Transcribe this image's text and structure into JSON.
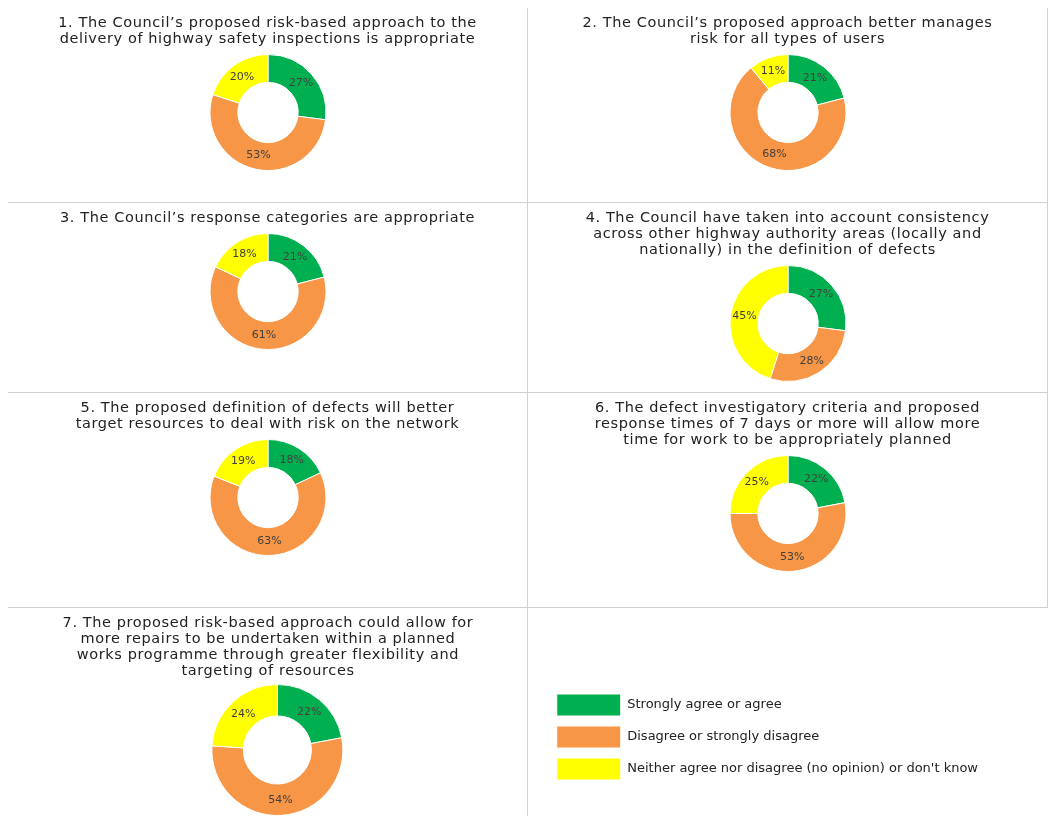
{
  "chart_data": [
    {
      "type": "donut",
      "title": "1. The Council’s proposed risk-based approach to the delivery of highway safety inspections is appropriate",
      "categories": [
        null,
        null,
        null
      ],
      "values": [
        27,
        53,
        20
      ],
      "colors": [
        "#00b050",
        "#f79646",
        "#ffff00"
      ],
      "value_labels": [
        "27%",
        "53%",
        "20%"
      ],
      "legend": false
    },
    {
      "type": "donut",
      "title": "2. The Council’s proposed approach better manages risk for all types of users",
      "categories": [
        null,
        null,
        null
      ],
      "values": [
        21,
        68,
        11
      ],
      "colors": [
        "#00b050",
        "#f79646",
        "#ffff00"
      ],
      "value_labels": [
        "21%",
        "68%",
        "11%"
      ],
      "legend": false
    },
    {
      "type": "donut",
      "title": "3. The Council’s response categories are appropriate",
      "categories": [
        null,
        null,
        null
      ],
      "values": [
        21,
        61,
        18
      ],
      "colors": [
        "#00b050",
        "#f79646",
        "#ffff00"
      ],
      "value_labels": [
        "21%",
        "61%",
        "18%"
      ],
      "legend": false
    },
    {
      "type": "donut",
      "title": "4. The Council have taken into account consistency across other highway authority areas (locally and nationally) in the definition of defects",
      "categories": [
        null,
        null,
        null
      ],
      "values": [
        27,
        28,
        45
      ],
      "colors": [
        "#00b050",
        "#f79646",
        "#ffff00"
      ],
      "value_labels": [
        "27%",
        "28%",
        "45%"
      ],
      "legend": false
    },
    {
      "type": "donut",
      "title": "5. The proposed definition of defects will better target resources to deal with risk on the network",
      "categories": [
        null,
        null,
        null
      ],
      "values": [
        18,
        63,
        19
      ],
      "colors": [
        "#00b050",
        "#f79646",
        "#ffff00"
      ],
      "value_labels": [
        "18%",
        "63%",
        "19%"
      ],
      "legend": false
    },
    {
      "type": "donut",
      "title": "6. The defect investigatory criteria and proposed response times of 7 days or more will allow more time for work to be appropriately planned",
      "categories": [
        null,
        null,
        null
      ],
      "values": [
        22,
        53,
        25
      ],
      "colors": [
        "#00b050",
        "#f79646",
        "#ffff00"
      ],
      "value_labels": [
        "22%",
        "53%",
        "25%"
      ],
      "legend": false
    },
    {
      "type": "donut",
      "title": "7. The proposed risk-based approach could allow for more repairs to be undertaken within a planned works programme through greater flexibility and targeting of resources",
      "categories": [
        "Strongly agree or agree",
        "Disagree or strongly disagree",
        "Neither agree nor disagree (no opinion) or don't know"
      ],
      "values": [
        22,
        54,
        24
      ],
      "colors": [
        "#00b050",
        "#f79646",
        "#ffff00"
      ],
      "value_labels": [
        "22%",
        "54%",
        "24%"
      ],
      "legend": "right"
    }
  ]
}
